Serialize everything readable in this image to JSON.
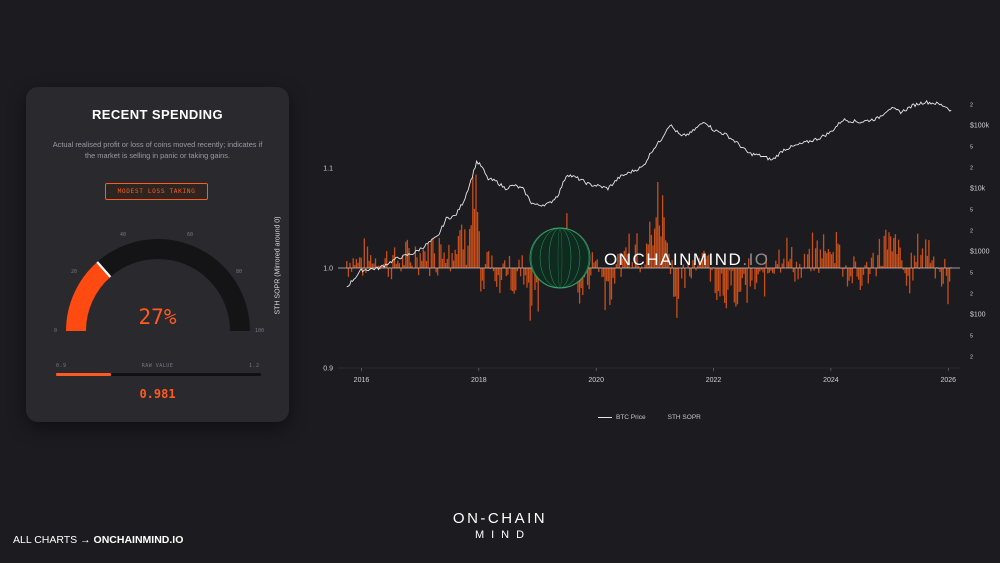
{
  "card": {
    "title": "RECENT SPENDING",
    "description": "Actual realised profit or loss of coins moved recently; indicates if the market is selling in panic or taking gains.",
    "badge": "MODEST LOSS TAKING",
    "gauge": {
      "value_pct": 27,
      "display": "27%",
      "ticks": [
        "0",
        "20",
        "40",
        "60",
        "80",
        "100"
      ]
    },
    "raw": {
      "label": "RAW VALUE",
      "min_label": "0.9",
      "max_label": "1.2",
      "value": 0.981,
      "display": "0.981"
    }
  },
  "chart_data": {
    "type": "area",
    "ylabel": "STH SOPR (Mirrored around 0)",
    "left_ticks": [
      "1.1",
      "1.0",
      "0.9"
    ],
    "right_ticks": [
      "2",
      "$100k",
      "5",
      "2",
      "$10k",
      "5",
      "2",
      "$1000",
      "5",
      "2",
      "$100",
      "5",
      "2"
    ],
    "x_ticks": [
      "2016",
      "2018",
      "2020",
      "2022",
      "2024",
      "2026"
    ],
    "x_range": [
      2015.6,
      2026.2
    ],
    "y_range": [
      0.9,
      1.1
    ],
    "price_log_range": [
      1.2,
      5.1
    ],
    "legend": [
      "BTC Price",
      "STH SOPR"
    ],
    "colors": {
      "price": "#e6e6e6",
      "sopr": "#e8581a",
      "grid": "#2a2a30"
    },
    "series": [
      {
        "name": "BTC Price",
        "x": [
          2015.75,
          2016.0,
          2016.3,
          2016.6,
          2016.9,
          2017.1,
          2017.3,
          2017.45,
          2017.6,
          2017.75,
          2017.9,
          2017.96,
          2018.05,
          2018.15,
          2018.3,
          2018.45,
          2018.6,
          2018.75,
          2018.9,
          2019.0,
          2019.2,
          2019.35,
          2019.5,
          2019.7,
          2019.9,
          2020.0,
          2020.2,
          2020.4,
          2020.6,
          2020.8,
          2020.95,
          2021.1,
          2021.25,
          2021.45,
          2021.6,
          2021.85,
          2022.0,
          2022.2,
          2022.4,
          2022.6,
          2022.8,
          2023.0,
          2023.2,
          2023.5,
          2023.8,
          2024.0,
          2024.2,
          2024.5,
          2024.8,
          2025.0,
          2025.2,
          2025.4,
          2025.6,
          2025.8,
          2025.95,
          2026.05
        ],
        "values": [
          240,
          420,
          450,
          620,
          750,
          980,
          1300,
          2400,
          2600,
          4400,
          10500,
          16000,
          13500,
          9000,
          8200,
          6500,
          7200,
          6400,
          4000,
          3700,
          3900,
          5200,
          10500,
          9000,
          7300,
          7200,
          6500,
          9500,
          11400,
          13500,
          23000,
          33000,
          56000,
          37000,
          41000,
          62000,
          46000,
          40000,
          30000,
          21000,
          19500,
          16800,
          24000,
          29000,
          35000,
          43000,
          65000,
          60000,
          68000,
          96000,
          84000,
          105000,
          118000,
          112000,
          102000,
          88000
        ]
      },
      {
        "name": "STH SOPR",
        "x": [
          2015.75,
          2016.0,
          2016.25,
          2016.5,
          2016.75,
          2017.0,
          2017.25,
          2017.45,
          2017.6,
          2017.75,
          2017.88,
          2017.96,
          2018.05,
          2018.15,
          2018.3,
          2018.45,
          2018.6,
          2018.75,
          2018.9,
          2019.0,
          2019.2,
          2019.4,
          2019.5,
          2019.7,
          2019.85,
          2020.0,
          2020.2,
          2020.4,
          2020.6,
          2020.8,
          2020.95,
          2021.05,
          2021.2,
          2021.35,
          2021.5,
          2021.7,
          2021.85,
          2022.0,
          2022.2,
          2022.4,
          2022.5,
          2022.7,
          2022.9,
          2023.1,
          2023.3,
          2023.5,
          2023.7,
          2023.9,
          2024.1,
          2024.3,
          2024.5,
          2024.7,
          2024.9,
          2025.1,
          2025.3,
          2025.5,
          2025.7,
          2025.9,
          2026.05
        ],
        "values": [
          1.008,
          1.01,
          1.012,
          1.006,
          1.01,
          1.015,
          1.02,
          1.03,
          1.025,
          1.04,
          1.065,
          1.085,
          0.96,
          1.015,
          0.975,
          1.005,
          0.985,
          1.0,
          0.96,
          0.97,
          1.01,
          1.025,
          1.04,
          0.975,
          0.985,
          1.02,
          0.955,
          1.01,
          1.03,
          1.02,
          1.035,
          1.07,
          1.05,
          0.97,
          0.98,
          1.015,
          1.02,
          0.985,
          0.975,
          0.965,
          0.975,
          0.985,
          0.99,
          1.025,
          1.01,
          0.995,
          1.015,
          1.02,
          1.03,
          0.99,
          0.985,
          1.005,
          1.025,
          1.03,
          0.985,
          1.02,
          1.025,
          0.99,
          0.98
        ]
      }
    ]
  },
  "watermark": {
    "text": "ONCHAINMIND",
    "suffix": ".IO"
  },
  "footer": {
    "left_prefix": "ALL CHARTS → ",
    "left_link": "ONCHAINMIND.IO",
    "brand_top": "ON-CHAIN",
    "brand_bottom": "MIND"
  }
}
